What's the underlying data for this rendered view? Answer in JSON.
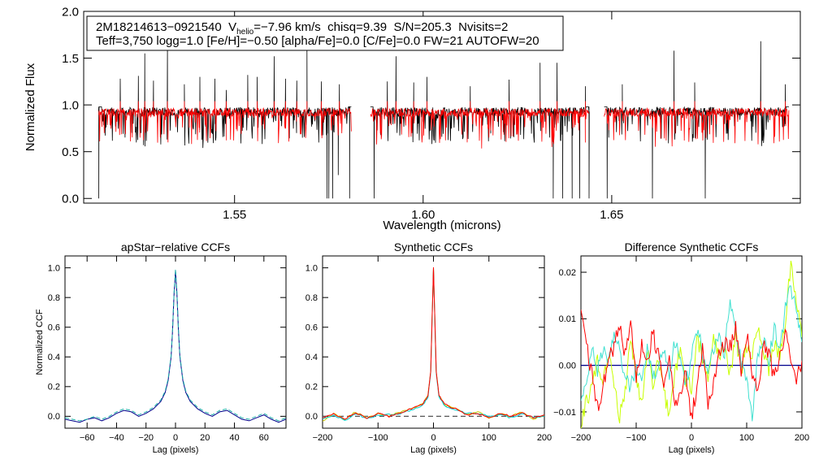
{
  "chart_data": [
    {
      "type": "line",
      "title": "",
      "xlabel": "Wavelength (microns)",
      "ylabel": "Normalized Flux",
      "xlim": [
        1.51,
        1.7
      ],
      "ylim": [
        -0.05,
        2.0
      ],
      "xticks": [
        1.55,
        1.6,
        1.65
      ],
      "xtick_labels": [
        "1.55",
        "1.60",
        "1.65"
      ],
      "yticks": [
        0.0,
        0.5,
        1.0,
        1.5,
        2.0
      ],
      "ytick_labels": [
        "0.0",
        "0.5",
        "1.0",
        "1.5",
        "2.0"
      ],
      "annotation": {
        "star": "2M18214613−0921540",
        "vhelio_prefix": "V",
        "vhelio_sub": "helio",
        "vhelio_value": "=−7.96 km/s",
        "chisq": "chisq=9.39",
        "sn": "S/N=205.3",
        "nvisits": "Nvisits=2",
        "line2": "Teff=3,750 logg=1.0 [Fe/H]=−0.50 [alpha/Fe]=0.0 [C/Fe]=0.0 FW=21 AUTOFW=20"
      },
      "chips": [
        [
          1.514,
          1.581
        ],
        [
          1.586,
          1.644
        ],
        [
          1.648,
          1.697
        ]
      ],
      "series": [
        {
          "color": "#000000",
          "continuum": 0.93
        },
        {
          "color": "#ff0000",
          "continuum": 0.92
        }
      ],
      "emission_peaks": [
        {
          "x": 1.5197,
          "y": 1.28
        },
        {
          "x": 1.5245,
          "y": 1.31
        },
        {
          "x": 1.5262,
          "y": 1.55
        },
        {
          "x": 1.5285,
          "y": 1.26
        },
        {
          "x": 1.5322,
          "y": 1.65
        },
        {
          "x": 1.5367,
          "y": 1.22
        },
        {
          "x": 1.5408,
          "y": 1.3
        },
        {
          "x": 1.5448,
          "y": 1.28
        },
        {
          "x": 1.5478,
          "y": 1.16
        },
        {
          "x": 1.5535,
          "y": 1.32
        },
        {
          "x": 1.556,
          "y": 1.3
        },
        {
          "x": 1.5605,
          "y": 1.52
        },
        {
          "x": 1.5635,
          "y": 1.28
        },
        {
          "x": 1.5665,
          "y": 1.26
        },
        {
          "x": 1.5692,
          "y": 1.62
        },
        {
          "x": 1.573,
          "y": 1.25
        },
        {
          "x": 1.5778,
          "y": 1.22
        },
        {
          "x": 1.5905,
          "y": 1.25
        },
        {
          "x": 1.5928,
          "y": 1.52
        },
        {
          "x": 1.5975,
          "y": 1.24
        },
        {
          "x": 1.601,
          "y": 1.3
        },
        {
          "x": 1.6125,
          "y": 1.2
        },
        {
          "x": 1.6228,
          "y": 1.27
        },
        {
          "x": 1.631,
          "y": 1.45
        },
        {
          "x": 1.6355,
          "y": 1.45
        },
        {
          "x": 1.643,
          "y": 1.2
        },
        {
          "x": 1.6528,
          "y": 1.22
        },
        {
          "x": 1.6665,
          "y": 1.58
        },
        {
          "x": 1.672,
          "y": 1.24
        },
        {
          "x": 1.6895,
          "y": 1.68
        },
        {
          "x": 1.696,
          "y": 1.22
        }
      ],
      "absorption_dips": [
        {
          "x": 1.514,
          "y": 0.0
        },
        {
          "x": 1.5745,
          "y": 0.0
        },
        {
          "x": 1.575,
          "y": 0.0
        },
        {
          "x": 1.576,
          "y": 0.0
        },
        {
          "x": 1.5775,
          "y": 0.25
        },
        {
          "x": 1.5805,
          "y": 0.0
        },
        {
          "x": 1.587,
          "y": 0.0
        },
        {
          "x": 1.6345,
          "y": 0.0
        },
        {
          "x": 1.637,
          "y": 0.0
        },
        {
          "x": 1.6395,
          "y": 0.0
        },
        {
          "x": 1.6415,
          "y": 0.0
        },
        {
          "x": 1.644,
          "y": 0.0
        },
        {
          "x": 1.6488,
          "y": 0.0
        },
        {
          "x": 1.6608,
          "y": 0.0
        },
        {
          "x": 1.6748,
          "y": 0.0
        }
      ]
    },
    {
      "type": "line",
      "title": "apStar−relative CCFs",
      "xlabel": "Lag (pixels)",
      "ylabel": "Normalized CCF",
      "xlim": [
        -75,
        75
      ],
      "ylim": [
        -0.08,
        1.08
      ],
      "xticks": [
        -60,
        -40,
        -20,
        0,
        20,
        40,
        60
      ],
      "xtick_labels": [
        "−60",
        "−40",
        "−20",
        "0",
        "20",
        "40",
        "60"
      ],
      "yticks": [
        0.0,
        0.2,
        0.4,
        0.6,
        0.8,
        1.0
      ],
      "ytick_labels": [
        "0.0",
        "0.2",
        "0.4",
        "0.6",
        "0.8",
        "1.0"
      ],
      "series": [
        {
          "color": "#00008b",
          "x": [
            -75,
            -70,
            -65,
            -60,
            -55,
            -50,
            -45,
            -40,
            -35,
            -30,
            -25,
            -20,
            -15,
            -10,
            -7,
            -5,
            -3,
            -2,
            -1,
            0,
            1,
            2,
            3,
            5,
            7,
            10,
            15,
            20,
            25,
            30,
            35,
            40,
            45,
            50,
            55,
            60,
            65,
            70,
            75
          ],
          "y": [
            -0.02,
            -0.03,
            -0.04,
            -0.02,
            -0.01,
            -0.03,
            -0.01,
            0.02,
            0.04,
            0.03,
            0.0,
            0.02,
            0.05,
            0.1,
            0.16,
            0.24,
            0.4,
            0.58,
            0.82,
            0.98,
            0.82,
            0.58,
            0.4,
            0.24,
            0.16,
            0.1,
            0.05,
            0.02,
            0.0,
            0.03,
            0.04,
            0.01,
            -0.02,
            -0.03,
            -0.01,
            0.01,
            -0.02,
            -0.04,
            -0.02
          ]
        },
        {
          "color": "#20b2aa",
          "x": [
            -75,
            -70,
            -65,
            -60,
            -55,
            -50,
            -45,
            -40,
            -35,
            -30,
            -25,
            -20,
            -15,
            -10,
            -7,
            -5,
            -3,
            -2,
            -1,
            0,
            1,
            2,
            3,
            5,
            7,
            10,
            15,
            20,
            25,
            30,
            35,
            40,
            45,
            50,
            55,
            60,
            65,
            70,
            75
          ],
          "y": [
            -0.01,
            -0.02,
            -0.03,
            -0.02,
            0.0,
            -0.02,
            0.0,
            0.03,
            0.05,
            0.04,
            0.01,
            0.03,
            0.06,
            0.11,
            0.17,
            0.25,
            0.41,
            0.59,
            0.83,
            0.99,
            0.83,
            0.59,
            0.41,
            0.25,
            0.17,
            0.11,
            0.06,
            0.03,
            0.01,
            0.04,
            0.05,
            0.02,
            -0.01,
            -0.02,
            0.0,
            0.02,
            -0.01,
            -0.03,
            -0.01
          ]
        }
      ]
    },
    {
      "type": "line",
      "title": "Synthetic CCFs",
      "xlabel": "Lag (pixels)",
      "ylabel": "",
      "xlim": [
        -200,
        200
      ],
      "ylim": [
        -0.08,
        1.08
      ],
      "xticks": [
        -200,
        -100,
        0,
        100,
        200
      ],
      "xtick_labels": [
        "−200",
        "−100",
        "0",
        "100",
        "200"
      ],
      "yticks": [
        0.0,
        0.2,
        0.4,
        0.6,
        0.8,
        1.0
      ],
      "ytick_labels": [
        "0.0",
        "0.2",
        "0.4",
        "0.6",
        "0.8",
        "1.0"
      ],
      "baseline": 0.0,
      "series": [
        {
          "color": "#c8c800",
          "x": [
            -200,
            -180,
            -160,
            -140,
            -120,
            -100,
            -80,
            -60,
            -40,
            -20,
            -10,
            -5,
            -2,
            0,
            2,
            5,
            10,
            20,
            40,
            60,
            80,
            100,
            120,
            140,
            160,
            180,
            200
          ],
          "y": [
            -0.03,
            0.02,
            -0.02,
            0.03,
            -0.01,
            0.02,
            0.0,
            0.03,
            0.05,
            0.08,
            0.14,
            0.3,
            0.72,
            1.0,
            0.72,
            0.3,
            0.14,
            0.08,
            0.05,
            0.01,
            0.03,
            -0.01,
            0.02,
            0.0,
            0.03,
            -0.02,
            0.01
          ]
        },
        {
          "color": "#00cdcd",
          "x": [
            -200,
            -180,
            -160,
            -140,
            -120,
            -100,
            -80,
            -60,
            -40,
            -20,
            -10,
            -5,
            -2,
            0,
            2,
            5,
            10,
            20,
            40,
            60,
            80,
            100,
            120,
            140,
            160,
            180,
            200
          ],
          "y": [
            -0.02,
            0.01,
            -0.03,
            0.02,
            -0.02,
            0.01,
            0.01,
            0.02,
            0.04,
            0.07,
            0.13,
            0.29,
            0.71,
            1.0,
            0.71,
            0.29,
            0.13,
            0.07,
            0.04,
            0.02,
            0.02,
            0.0,
            0.01,
            -0.01,
            0.02,
            -0.01,
            0.0
          ]
        },
        {
          "color": "#ff0000",
          "x": [
            -200,
            -180,
            -160,
            -140,
            -120,
            -100,
            -80,
            -60,
            -40,
            -20,
            -10,
            -5,
            -2,
            0,
            2,
            5,
            10,
            20,
            40,
            60,
            80,
            100,
            120,
            140,
            160,
            180,
            200
          ],
          "y": [
            -0.01,
            0.02,
            -0.02,
            0.02,
            -0.01,
            0.02,
            0.0,
            0.02,
            0.05,
            0.08,
            0.14,
            0.3,
            0.72,
            1.0,
            0.72,
            0.3,
            0.14,
            0.08,
            0.05,
            0.01,
            0.02,
            -0.01,
            0.02,
            0.0,
            0.02,
            -0.01,
            0.01
          ]
        }
      ]
    },
    {
      "type": "line",
      "title": "Difference Synthetic CCFs",
      "xlabel": "Lag (pixels)",
      "ylabel": "",
      "xlim": [
        -200,
        200
      ],
      "ylim": [
        -0.0135,
        0.0235
      ],
      "xticks": [
        -200,
        -100,
        0,
        100,
        200
      ],
      "xtick_labels": [
        "−200",
        "−100",
        "0",
        "100",
        "200"
      ],
      "yticks": [
        -0.01,
        0.0,
        0.01,
        0.02
      ],
      "ytick_labels": [
        "−0.01",
        "0.00",
        "0.01",
        "0.02"
      ],
      "zero_line_color": "#00008b",
      "series": [
        {
          "color": "#c8ff00",
          "x": [
            -200,
            -190,
            -180,
            -170,
            -160,
            -150,
            -140,
            -130,
            -120,
            -110,
            -100,
            -90,
            -80,
            -70,
            -60,
            -50,
            -40,
            -30,
            -20,
            -10,
            0,
            10,
            20,
            30,
            40,
            50,
            60,
            70,
            80,
            90,
            100,
            110,
            120,
            130,
            140,
            150,
            160,
            170,
            180,
            190,
            200
          ],
          "y": [
            -0.012,
            -0.008,
            -0.004,
            0.001,
            -0.003,
            0.002,
            -0.004,
            -0.011,
            -0.006,
            0.006,
            -0.002,
            -0.009,
            0.003,
            -0.004,
            0.001,
            -0.006,
            -0.01,
            -0.002,
            0.004,
            -0.003,
            -0.005,
            0.006,
            0.002,
            -0.003,
            0.007,
            0.001,
            0.003,
            -0.002,
            0.006,
            -0.001,
            0.004,
            0.002,
            0.009,
            0.003,
            -0.001,
            0.005,
            0.002,
            0.01,
            0.022,
            0.014,
            0.006
          ]
        },
        {
          "color": "#40e0d0",
          "x": [
            -200,
            -190,
            -180,
            -170,
            -160,
            -150,
            -140,
            -130,
            -120,
            -110,
            -100,
            -90,
            -80,
            -70,
            -60,
            -50,
            -40,
            -30,
            -20,
            -10,
            0,
            10,
            20,
            30,
            40,
            50,
            60,
            70,
            80,
            90,
            100,
            110,
            120,
            130,
            140,
            150,
            160,
            170,
            180,
            190,
            200
          ],
          "y": [
            -0.008,
            -0.004,
            0.003,
            -0.001,
            0.004,
            0.001,
            0.007,
            0.003,
            -0.003,
            -0.005,
            0.0,
            -0.002,
            0.003,
            -0.003,
            -0.001,
            0.003,
            -0.002,
            0.005,
            0.002,
            -0.004,
            0.002,
            0.008,
            0.003,
            -0.002,
            0.004,
            0.007,
            0.002,
            0.015,
            0.007,
            0.001,
            -0.003,
            -0.012,
            0.002,
            0.006,
            0.001,
            0.008,
            0.004,
            0.012,
            0.017,
            0.011,
            0.005
          ]
        },
        {
          "color": "#ff0000",
          "x": [
            -200,
            -190,
            -180,
            -170,
            -160,
            -150,
            -140,
            -130,
            -120,
            -110,
            -100,
            -90,
            -80,
            -70,
            -60,
            -50,
            -40,
            -30,
            -20,
            -10,
            0,
            10,
            20,
            30,
            40,
            50,
            60,
            70,
            80,
            90,
            100,
            110,
            120,
            130,
            140,
            150,
            160,
            170,
            180,
            190,
            200
          ],
          "y": [
            0.013,
            0.004,
            -0.002,
            -0.009,
            -0.005,
            0.002,
            0.004,
            0.009,
            0.002,
            0.01,
            -0.003,
            0.005,
            0.001,
            0.007,
            0.002,
            -0.005,
            0.002,
            -0.01,
            -0.005,
            -0.002,
            -0.011,
            -0.005,
            0.004,
            -0.008,
            -0.004,
            0.003,
            0.005,
            0.004,
            0.008,
            -0.003,
            0.007,
            -0.002,
            -0.006,
            0.005,
            0.002,
            -0.003,
            0.002,
            0.007,
            0.001,
            -0.003,
            0.001
          ]
        }
      ]
    }
  ]
}
